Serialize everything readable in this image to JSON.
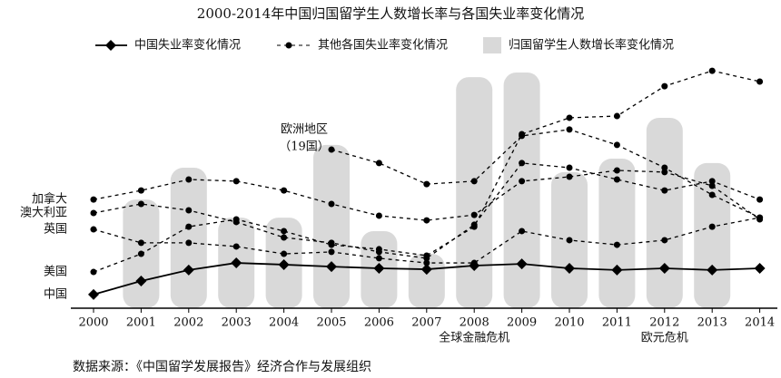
{
  "chart_data": {
    "type": "line",
    "title": "2000-2014年中国归国留学生人数增长率与各国失业率变化情况",
    "categories": [
      "2000",
      "2001",
      "2002",
      "2003",
      "2004",
      "2005",
      "2006",
      "2007",
      "2008",
      "2009",
      "2010",
      "2011",
      "2012",
      "2013",
      "2014"
    ],
    "ylim": [
      0,
      100
    ],
    "legend": [
      "中国失业率变化情况",
      "其他各国失业率变化情况",
      "归国留学生人数增长率变化情况"
    ],
    "bars": {
      "color": "#cccccc",
      "values": [
        null,
        44.4,
        57.4,
        37,
        37,
        66.7,
        31.5,
        22.2,
        94.4,
        96.3,
        55.6,
        61.1,
        77.8,
        59.3,
        null
      ]
    },
    "series": [
      {
        "name": "中国",
        "color": "#000000",
        "values": [
          5.6,
          11.1,
          15.6,
          18.5,
          17.8,
          17.0,
          16.3,
          15.9,
          17.4,
          18.1,
          16.3,
          15.6,
          16.3,
          15.6,
          16.3
        ]
      },
      {
        "name": "加拿大",
        "color": "#000000",
        "values": [
          44.4,
          48.1,
          52.6,
          51.9,
          48.1,
          42.6,
          37.8,
          35.9,
          38.1,
          51.9,
          53.7,
          56.3,
          55.6,
          50,
          36.3
        ]
      },
      {
        "name": "澳大利亚",
        "color": "#000000",
        "values": [
          38.9,
          42.6,
          40,
          35.2,
          28.9,
          26.7,
          23,
          20.4,
          34.1,
          59.3,
          57.4,
          52.6,
          48.1,
          51.9,
          44.4
        ]
      },
      {
        "name": "英国",
        "color": "#000000",
        "values": [
          32.2,
          26.7,
          26.7,
          25.2,
          22.2,
          23,
          20.4,
          18.5,
          18.5,
          31.5,
          27.8,
          25.9,
          27.8,
          33.3,
          37
        ]
      },
      {
        "name": "美国",
        "color": "#000000",
        "values": [
          14.8,
          22.2,
          33.3,
          36.3,
          31.5,
          25.9,
          24.1,
          21.5,
          33.3,
          71.1,
          77.8,
          78.5,
          90.7,
          97.0,
          92.6
        ]
      },
      {
        "name": [
          "欧洲地区",
          "（19国）"
        ],
        "color": "#000000",
        "values": [
          null,
          null,
          null,
          null,
          null,
          64.8,
          59.3,
          50.7,
          51.9,
          70.4,
          73,
          66.7,
          57.4,
          46.3,
          37
        ]
      }
    ],
    "annotations": [
      {
        "category": "2008",
        "text": "全球金融危机"
      },
      {
        "category": "2012",
        "text": "欧元危机"
      }
    ],
    "source": "数据来源：《中国留学发展报告》经济合作与发展组织"
  }
}
